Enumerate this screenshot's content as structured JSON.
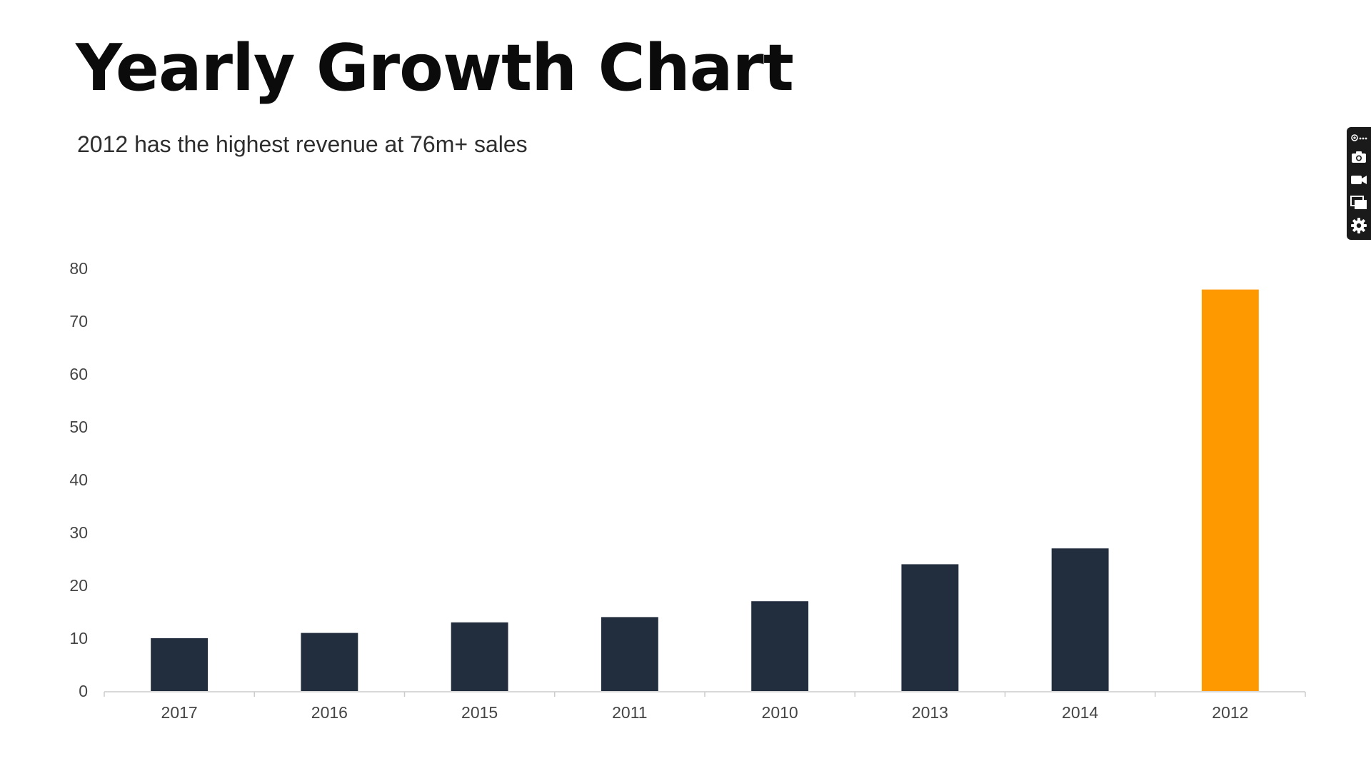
{
  "header": {
    "title": "Yearly Growth Chart",
    "subtitle": "2012 has the highest revenue at 76m+ sales"
  },
  "chart_data": {
    "type": "bar",
    "categories": [
      "2017",
      "2016",
      "2015",
      "2011",
      "2010",
      "2013",
      "2014",
      "2012"
    ],
    "values": [
      10,
      11,
      13,
      14,
      17,
      24,
      27,
      76
    ],
    "highlight_category": "2012",
    "title": "",
    "xlabel": "",
    "ylabel": "",
    "ylim": [
      0,
      80
    ],
    "yticks": [
      0,
      10,
      20,
      30,
      40,
      50,
      60,
      70,
      80
    ],
    "grid": false,
    "legend": "none",
    "colors": {
      "bar": "#222d3d",
      "highlight": "#ff9900",
      "axis": "#cccccc"
    }
  },
  "toolbar": {
    "items": [
      {
        "icon": "extension-menu-icon"
      },
      {
        "icon": "camera-icon"
      },
      {
        "icon": "video-camera-icon"
      },
      {
        "icon": "windows-icon"
      },
      {
        "icon": "gear-icon"
      }
    ]
  }
}
